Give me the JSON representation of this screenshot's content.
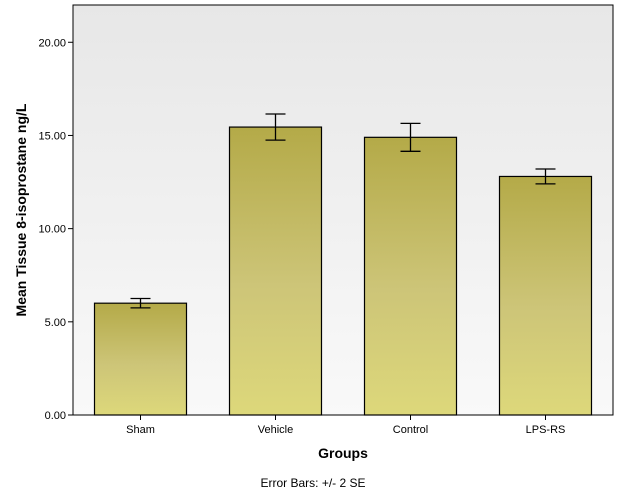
{
  "chart_data": {
    "type": "bar",
    "title": "",
    "xlabel": "Groups",
    "ylabel": "Mean Tissue 8-isoprostane ng/L",
    "categories": [
      "Sham",
      "Vehicle",
      "Control",
      "LPS-RS"
    ],
    "values": [
      6.0,
      15.45,
      14.9,
      12.8
    ],
    "error_low": [
      5.75,
      14.75,
      14.15,
      12.4
    ],
    "error_high": [
      6.25,
      16.15,
      15.65,
      13.2
    ],
    "ylim": [
      0,
      22
    ],
    "yticks": [
      0,
      5,
      10,
      15,
      20
    ],
    "ytick_labels": [
      "0.00",
      "5.00",
      "10.00",
      "15.00",
      "20.00"
    ],
    "grid": false,
    "footnote": "Error Bars: +/- 2 SE",
    "colors": {
      "bar_top": "#b4aa48",
      "bar_mid": "#cdc578",
      "bar_bottom": "#ddd87a",
      "bar_stroke": "#000000",
      "plot_bg_top": "#e7e7e7",
      "plot_bg_bottom": "#f9f9f9"
    }
  }
}
